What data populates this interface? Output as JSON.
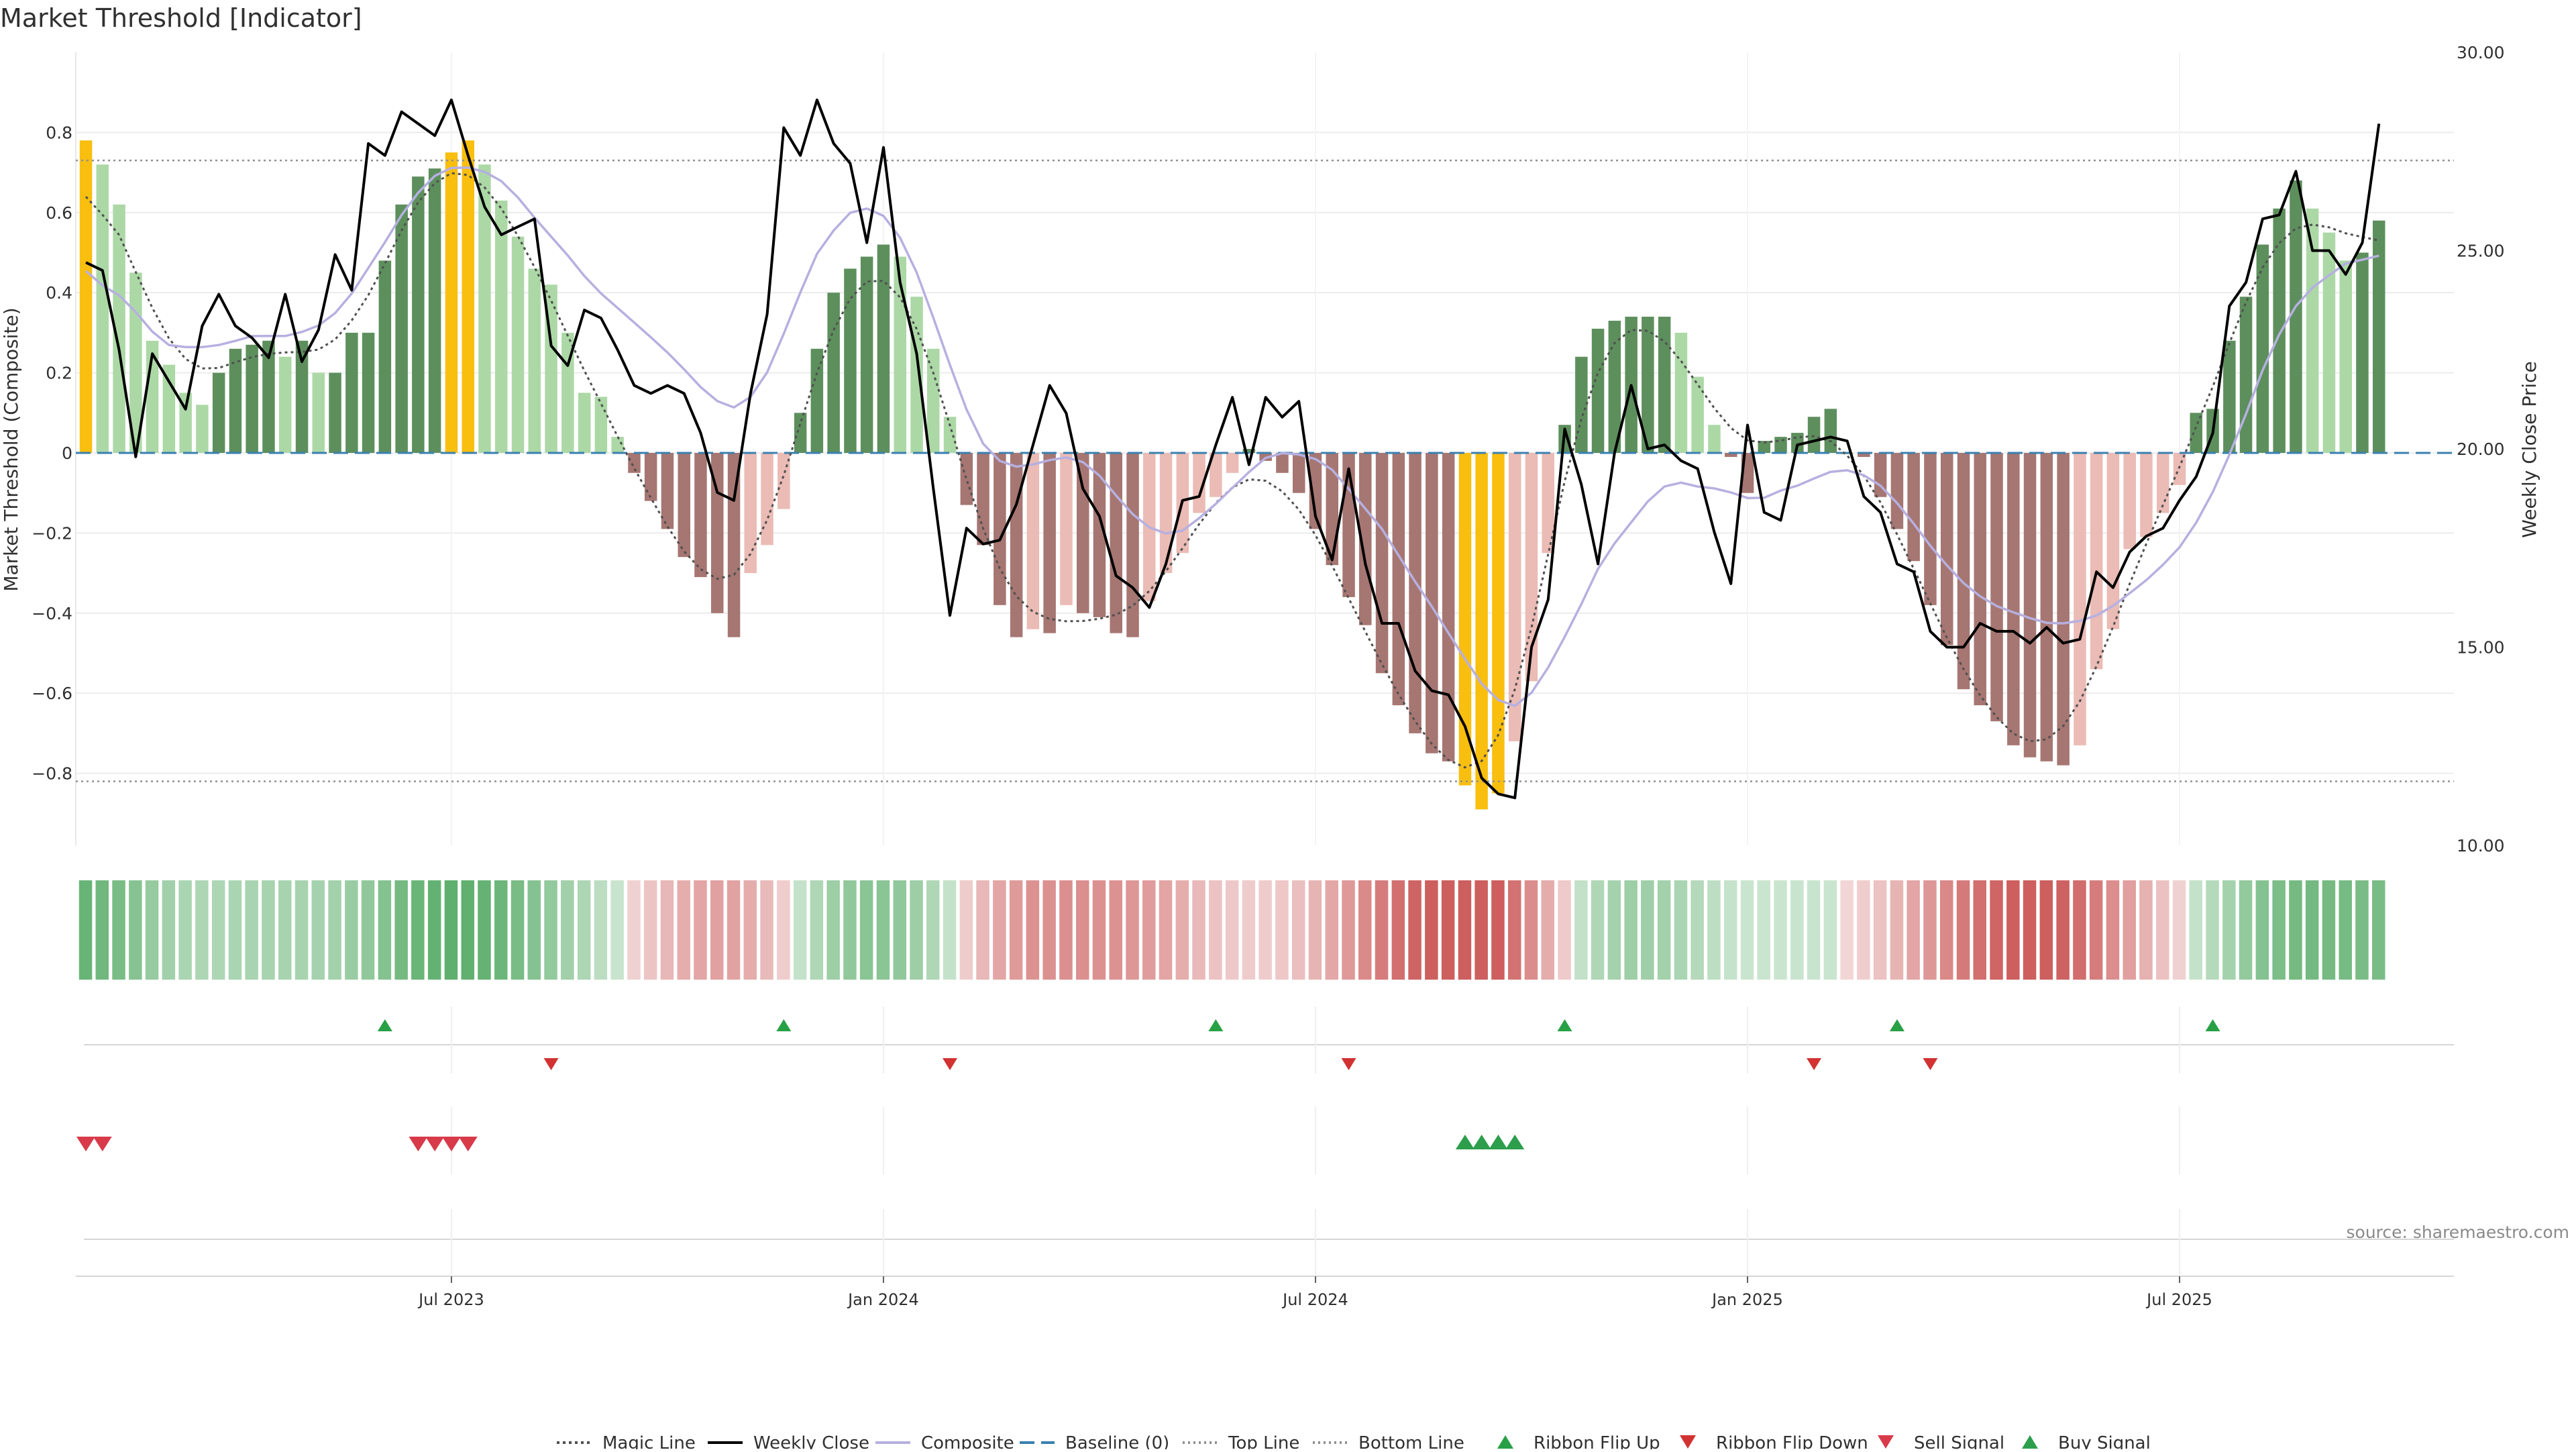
{
  "chart_data": {
    "type": "bar",
    "title": "Market Threshold [Indicator]",
    "ylabel_left": "Market Threshold (Composite)",
    "ylabel_right": "Weekly Close Price",
    "source": "source: sharemaestro.com",
    "ylim_left": [
      -0.98,
      1.0
    ],
    "ylim_right": [
      10.0,
      30.0
    ],
    "yticks_left": [
      0.8,
      0.6,
      0.4,
      0.2,
      0,
      -0.2,
      -0.4,
      -0.6,
      -0.8
    ],
    "yticks_left_labels": [
      "0.8",
      "0.6",
      "0.4",
      "0.2",
      "0",
      "−0.2",
      "−0.4",
      "−0.6",
      "−0.8"
    ],
    "yticks_right": [
      30.0,
      25.0,
      20.0,
      15.0,
      10.0
    ],
    "yticks_right_labels": [
      "30.00",
      "25.00",
      "20.00",
      "15.00",
      "10.00"
    ],
    "x_dates": [
      "Jul 2023",
      "Jan 2024",
      "Jul 2024",
      "Jan 2025",
      "Jul 2025"
    ],
    "x_date_weeks": [
      22,
      48,
      74,
      100,
      126
    ],
    "top_line": 0.73,
    "bottom_line": -0.82,
    "composite_bars": [
      0.78,
      0.72,
      0.62,
      0.45,
      0.28,
      0.22,
      0.15,
      0.12,
      0.2,
      0.26,
      0.27,
      0.28,
      0.24,
      0.28,
      0.2,
      0.2,
      0.3,
      0.3,
      0.48,
      0.62,
      0.69,
      0.71,
      0.75,
      0.78,
      0.72,
      0.63,
      0.54,
      0.46,
      0.42,
      0.3,
      0.15,
      0.14,
      0.04,
      -0.05,
      -0.12,
      -0.19,
      -0.26,
      -0.31,
      -0.4,
      -0.46,
      -0.3,
      -0.23,
      -0.14,
      0.1,
      0.26,
      0.4,
      0.46,
      0.49,
      0.52,
      0.49,
      0.39,
      0.26,
      0.09,
      -0.13,
      -0.23,
      -0.38,
      -0.46,
      -0.44,
      -0.45,
      -0.38,
      -0.4,
      -0.41,
      -0.45,
      -0.46,
      -0.37,
      -0.3,
      -0.25,
      -0.15,
      -0.11,
      -0.05,
      0.01,
      -0.02,
      -0.05,
      -0.1,
      -0.19,
      -0.28,
      -0.36,
      -0.43,
      -0.55,
      -0.63,
      -0.7,
      -0.75,
      -0.77,
      -0.83,
      -0.89,
      -0.85,
      -0.72,
      -0.57,
      -0.25,
      0.07,
      0.24,
      0.31,
      0.33,
      0.34,
      0.34,
      0.34,
      0.3,
      0.19,
      0.07,
      -0.01,
      -0.1,
      0.03,
      0.04,
      0.05,
      0.09,
      0.11,
      0.0,
      -0.01,
      -0.11,
      -0.19,
      -0.27,
      -0.38,
      -0.48,
      -0.59,
      -0.63,
      -0.67,
      -0.73,
      -0.76,
      -0.77,
      -0.78,
      -0.73,
      -0.54,
      -0.44,
      -0.24,
      -0.21,
      -0.15,
      -0.08,
      0.1,
      0.11,
      0.28,
      0.39,
      0.52,
      0.61,
      0.68,
      0.61,
      0.55,
      0.48,
      0.5,
      0.58
    ],
    "weekly_close": [
      24.7,
      24.5,
      22.5,
      19.8,
      22.4,
      21.7,
      21.0,
      23.1,
      23.9,
      23.1,
      22.8,
      22.3,
      23.9,
      22.2,
      23.0,
      24.9,
      24.0,
      27.7,
      27.4,
      28.5,
      28.2,
      27.9,
      28.8,
      27.4,
      26.1,
      25.4,
      25.6,
      25.8,
      22.6,
      22.1,
      23.5,
      23.3,
      22.5,
      21.6,
      21.4,
      21.6,
      21.4,
      20.4,
      18.9,
      18.7,
      21.4,
      23.4,
      28.1,
      27.4,
      28.8,
      27.7,
      27.2,
      25.2,
      27.6,
      24.2,
      22.4,
      19.0,
      15.8,
      18.0,
      17.6,
      17.7,
      18.6,
      20.1,
      21.6,
      20.9,
      19.0,
      18.3,
      16.8,
      16.5,
      16.0,
      17.1,
      18.7,
      18.8,
      20.1,
      21.3,
      19.6,
      21.3,
      20.8,
      21.2,
      18.3,
      17.2,
      19.5,
      17.1,
      15.6,
      15.6,
      14.4,
      13.9,
      13.8,
      13.0,
      11.7,
      11.3,
      11.2,
      15.0,
      16.2,
      20.5,
      19.1,
      17.1,
      19.9,
      21.6,
      20.0,
      20.1,
      19.7,
      19.5,
      17.9,
      16.6,
      20.6,
      18.4,
      18.2,
      20.1,
      20.2,
      20.3,
      20.2,
      18.8,
      18.4,
      17.1,
      16.9,
      15.4,
      15.0,
      15.0,
      15.6,
      15.4,
      15.4,
      15.1,
      15.5,
      15.1,
      15.2,
      16.9,
      16.5,
      17.4,
      17.8,
      18.0,
      18.7,
      19.3,
      20.4,
      23.6,
      24.2,
      25.8,
      25.9,
      27.0,
      25.0,
      25.0,
      24.4,
      25.2,
      28.2
    ]
  },
  "legend": {
    "magic": "Magic Line",
    "close": "Weekly Close",
    "composite": "Composite",
    "baseline": "Baseline (0)",
    "top": "Top Line",
    "bottom": "Bottom Line",
    "flip_up": "Ribbon Flip Up",
    "flip_down": "Ribbon Flip Down",
    "sell": "Sell Signal",
    "buy": "Buy Signal"
  },
  "ribbon_flip_up_weeks": [
    18,
    42,
    68,
    89,
    109,
    128
  ],
  "ribbon_flip_down_weeks": [
    28,
    52,
    76,
    104,
    111
  ],
  "sell_signal_weeks": [
    0,
    1,
    20,
    21,
    22,
    23
  ],
  "buy_signal_weeks": [
    83,
    84,
    85,
    86
  ],
  "colors": {
    "yellow": "#f9bf0f",
    "dark_green": "#5d8f5d",
    "light_green": "#acd8a6",
    "dark_red": "#a67672",
    "light_red": "#ebbbb5",
    "close": "#000000",
    "composite": "#b6b0e0",
    "magic": "#505050",
    "baseline": "#3a80b0",
    "flip_up": "#28a045",
    "flip_down": "#d23232",
    "sell": "#d83a4a",
    "buy": "#2c9e4c"
  }
}
